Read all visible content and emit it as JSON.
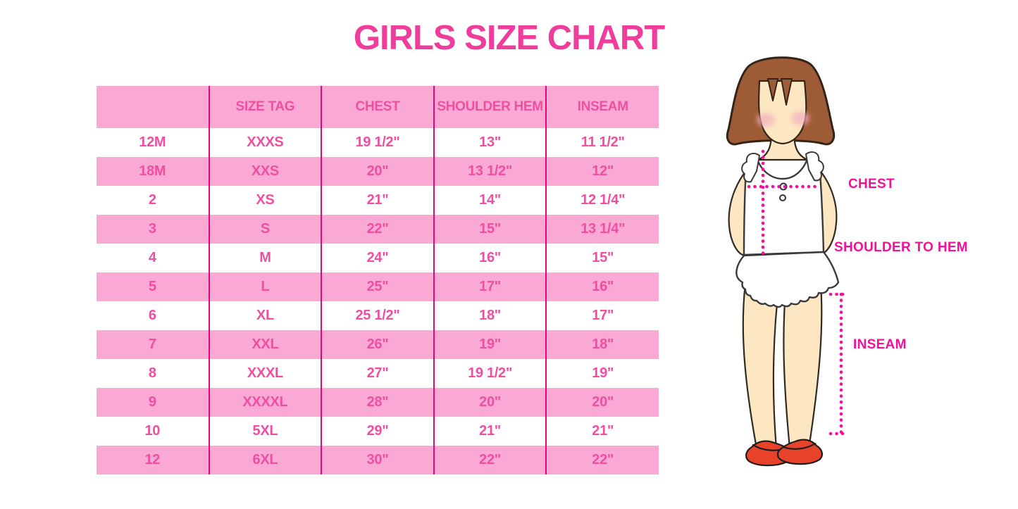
{
  "page": {
    "title": "GIRLS SIZE CHART"
  },
  "colors": {
    "title_pink": "#ee3d9a",
    "row_pink": "#f9a9d4",
    "column_line": "#e0067f",
    "table_text_pink": "#ee4fa1",
    "measure_pink": "#f2119b",
    "hair_brown": "#9d5c35",
    "skin": "#fce7c2",
    "shoe_red": "#e8432a"
  },
  "chart_data": {
    "type": "table",
    "title": "GIRLS SIZE CHART",
    "columns": [
      "",
      "SIZE TAG",
      "CHEST",
      "SHOULDER HEM",
      "INSEAM"
    ],
    "rows": [
      [
        "12M",
        "XXXS",
        "19 1/2\"",
        "13\"",
        "11 1/2\""
      ],
      [
        "18M",
        "XXS",
        "20\"",
        "13 1/2\"",
        "12\""
      ],
      [
        "2",
        "XS",
        "21\"",
        "14\"",
        "12 1/4\""
      ],
      [
        "3",
        "S",
        "22\"",
        "15\"",
        "13 1/4\""
      ],
      [
        "4",
        "M",
        "24\"",
        "16\"",
        "15\""
      ],
      [
        "5",
        "L",
        "25\"",
        "17\"",
        "16\""
      ],
      [
        "6",
        "XL",
        "25 1/2\"",
        "18\"",
        "17\""
      ],
      [
        "7",
        "XXL",
        "26\"",
        "19\"",
        "18\""
      ],
      [
        "8",
        "XXXL",
        "27\"",
        "19 1/2\"",
        "19\""
      ],
      [
        "9",
        "XXXXL",
        "28\"",
        "20\"",
        "20\""
      ],
      [
        "10",
        "5XL",
        "29\"",
        "21\"",
        "21\""
      ],
      [
        "12",
        "6XL",
        "30\"",
        "22\"",
        "22\""
      ]
    ]
  },
  "figure": {
    "labels": {
      "chest": "CHEST",
      "shoulder_to_hem": "SHOULDER TO HEM",
      "inseam": "INSEAM"
    }
  }
}
